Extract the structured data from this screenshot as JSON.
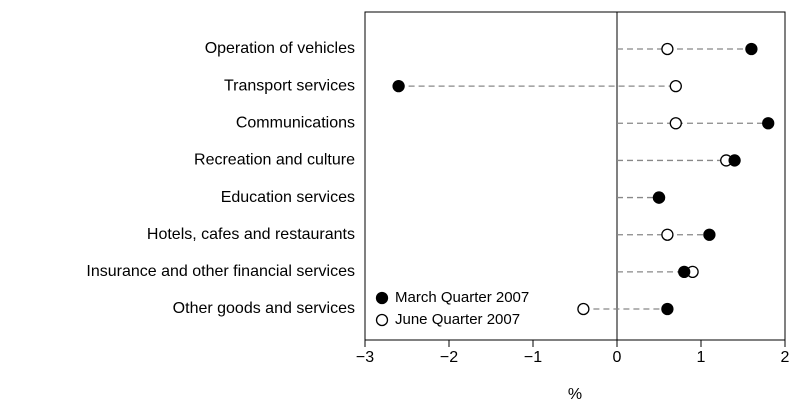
{
  "chart_data": {
    "type": "dot",
    "categories": [
      "Operation of vehicles",
      "Transport services",
      "Communications",
      "Recreation and culture",
      "Education services",
      "Hotels, cafes and restaurants",
      "Insurance and other financial services",
      "Other goods and services"
    ],
    "series": [
      {
        "name": "March Quarter 2007",
        "color": "#000000",
        "values": [
          1.6,
          -2.6,
          1.8,
          1.4,
          0.5,
          1.1,
          0.8,
          0.6
        ]
      },
      {
        "name": "June Quarter 2007",
        "color": "#ffffff",
        "values": [
          0.6,
          0.7,
          0.7,
          1.3,
          0.5,
          0.6,
          0.9,
          -0.4
        ]
      }
    ],
    "xlabel": "%",
    "xlim": [
      -3,
      2
    ],
    "xticks": [
      {
        "value": -3,
        "label": "−3"
      },
      {
        "value": -2,
        "label": "−2"
      },
      {
        "value": -1,
        "label": "−1"
      },
      0,
      1,
      2
    ],
    "legend": "lower left"
  }
}
